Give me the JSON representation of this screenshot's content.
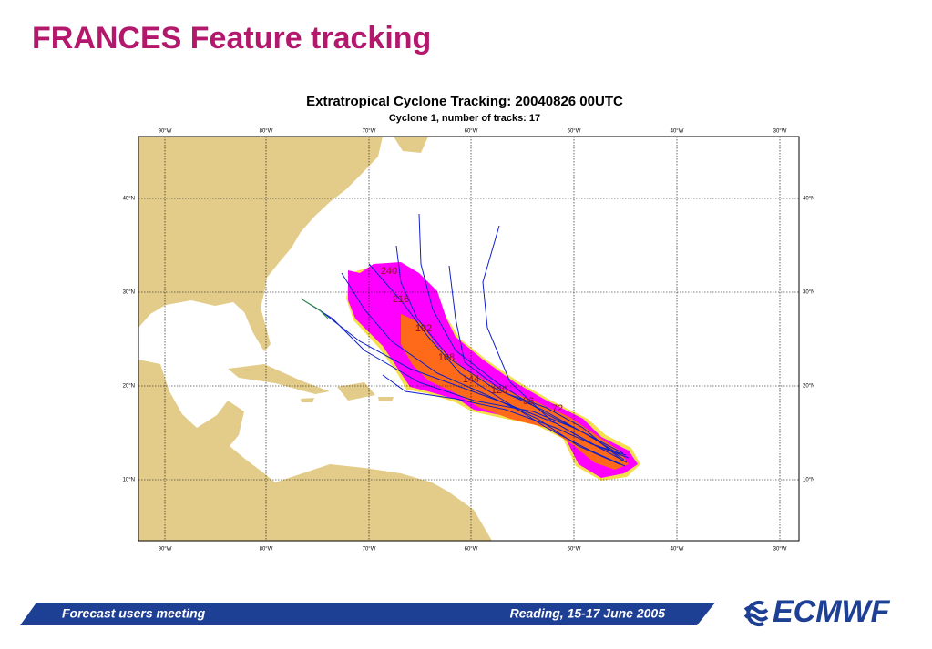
{
  "header": {
    "title": "FRANCES Feature tracking"
  },
  "map": {
    "title": "Extratropical Cyclone Tracking: 20040826 00UTC",
    "subtitle": "Cyclone 1, number of tracks: 17",
    "lon_labels": [
      "90°W",
      "80°W",
      "70°W",
      "60°W",
      "50°W",
      "40°W",
      "30°W"
    ],
    "lat_labels": [
      "40°N",
      "30°N",
      "20°N",
      "10°N"
    ],
    "step_labels": [
      "240",
      "216",
      "192",
      "168",
      "144",
      "120",
      "96",
      "72"
    ]
  },
  "footer": {
    "event": "Forecast users meeting",
    "place": "Reading, 15-17 June 2005",
    "logo": "ECMWF"
  }
}
